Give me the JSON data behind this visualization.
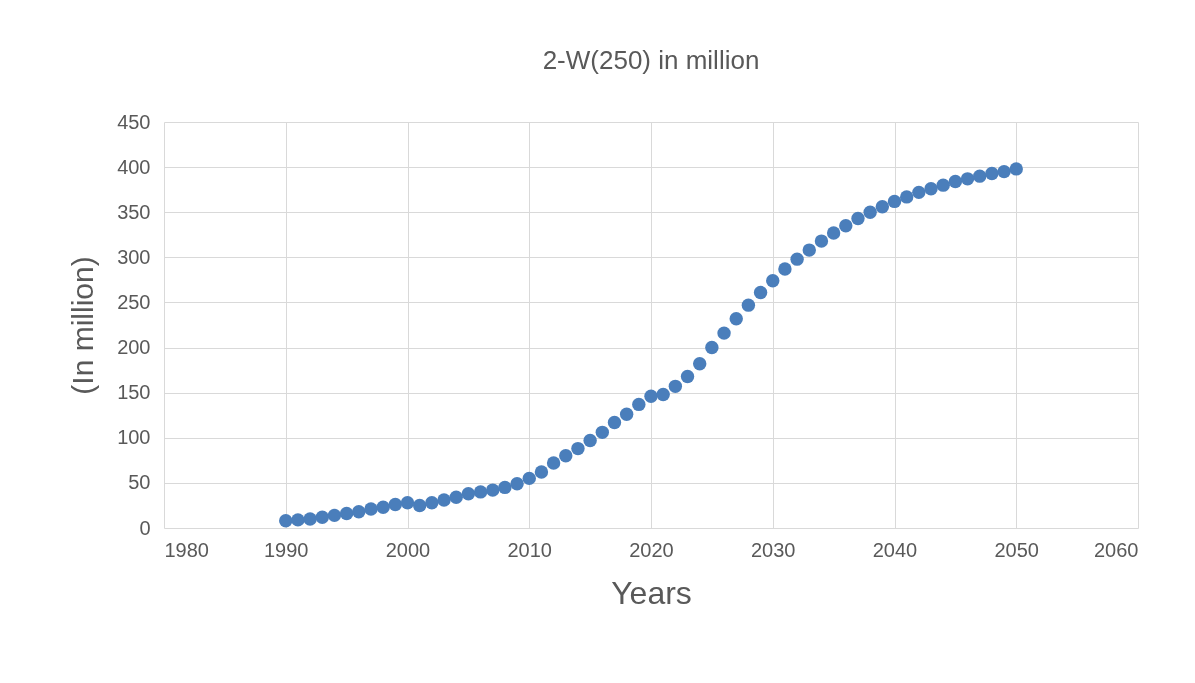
{
  "chart_data": {
    "type": "scatter",
    "title": "2-W(250) in million",
    "xlabel": "Years",
    "ylabel": "(In million)",
    "x": [
      1990,
      1991,
      1992,
      1993,
      1994,
      1995,
      1996,
      1997,
      1998,
      1999,
      2000,
      2001,
      2002,
      2003,
      2004,
      2005,
      2006,
      2007,
      2008,
      2009,
      2010,
      2011,
      2012,
      2013,
      2014,
      2015,
      2016,
      2017,
      2018,
      2019,
      2020,
      2021,
      2022,
      2023,
      2024,
      2025,
      2026,
      2027,
      2028,
      2029,
      2030,
      2031,
      2032,
      2033,
      2034,
      2035,
      2036,
      2037,
      2038,
      2039,
      2040,
      2041,
      2042,
      2043,
      2044,
      2045,
      2046,
      2047,
      2048,
      2049,
      2050
    ],
    "values": [
      8,
      9,
      10,
      12,
      14,
      16,
      18,
      21,
      23,
      26,
      28,
      25,
      28,
      31,
      34,
      38,
      40,
      42,
      45,
      49,
      55,
      62,
      72,
      80,
      88,
      97,
      106,
      117,
      126,
      137,
      146,
      148,
      157,
      168,
      182,
      200,
      216,
      232,
      247,
      261,
      274,
      287,
      298,
      308,
      318,
      327,
      335,
      343,
      350,
      356,
      362,
      367,
      372,
      376,
      380,
      384,
      387,
      390,
      393,
      395,
      398
    ],
    "color": "#4a7ebb",
    "marker": "circle",
    "xlim": [
      1980,
      2060
    ],
    "xticks": [
      1980,
      1990,
      2000,
      2010,
      2020,
      2030,
      2040,
      2050,
      2060
    ],
    "ylim": [
      0,
      450
    ],
    "yticks": [
      0,
      50,
      100,
      150,
      200,
      250,
      300,
      350,
      400,
      450
    ],
    "grid": true
  }
}
